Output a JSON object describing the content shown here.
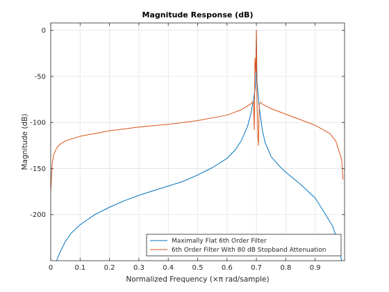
{
  "chart_data": {
    "type": "line",
    "title": "Magnitude Response (dB)",
    "xlabel": "Normalized Frequency (×π rad/sample)",
    "ylabel": "Magnitude (dB)",
    "xlim": [
      0,
      1
    ],
    "ylim": [
      -250,
      8
    ],
    "xticks": [
      0,
      0.1,
      0.2,
      0.3,
      0.4,
      0.5,
      0.6,
      0.7,
      0.8,
      0.9
    ],
    "xticklabels": [
      "0",
      "0.1",
      "0.2",
      "0.3",
      "0.4",
      "0.5",
      "0.6",
      "0.7",
      "0.8",
      "0.9"
    ],
    "yticks": [
      0,
      -50,
      -100,
      -150,
      -200
    ],
    "yticklabels": [
      "0",
      "-50",
      "-100",
      "-150",
      "-200"
    ],
    "grid": true,
    "legend_position": "bottom-right",
    "series": [
      {
        "name": "Maximally Flat 6th Order Filter",
        "color": "#0072BD",
        "x": [
          0.02,
          0.03,
          0.05,
          0.07,
          0.1,
          0.15,
          0.2,
          0.25,
          0.3,
          0.35,
          0.4,
          0.45,
          0.5,
          0.55,
          0.6,
          0.63,
          0.65,
          0.67,
          0.68,
          0.69,
          0.695,
          0.698,
          0.7,
          0.702,
          0.705,
          0.71,
          0.72,
          0.73,
          0.75,
          0.78,
          0.8,
          0.85,
          0.9,
          0.93,
          0.96,
          0.98,
          0.99
        ],
        "y": [
          -250,
          -242,
          -229,
          -220,
          -211,
          -200,
          -192,
          -185,
          -179,
          -174,
          -169,
          -164,
          -157,
          -149,
          -139,
          -129,
          -119,
          -104,
          -92,
          -76,
          -65,
          -55,
          0,
          -55,
          -66,
          -84,
          -108,
          -122,
          -137,
          -148,
          -154,
          -167,
          -182,
          -197,
          -213,
          -232,
          -250
        ]
      },
      {
        "name": "6th Order Filter With 80 dB Stopband Attenuation",
        "color": "#D95319",
        "x": [
          0,
          0.005,
          0.01,
          0.02,
          0.03,
          0.05,
          0.1,
          0.2,
          0.3,
          0.4,
          0.5,
          0.6,
          0.65,
          0.68,
          0.69,
          0.693,
          0.695,
          0.698,
          0.7,
          0.702,
          0.705,
          0.707,
          0.71,
          0.715,
          0.72,
          0.75,
          0.8,
          0.9,
          0.95,
          0.97,
          0.98,
          0.99,
          0.995
        ],
        "y": [
          -175,
          -145,
          -135,
          -128,
          -124,
          -120,
          -115,
          -109,
          -105,
          -102,
          -98,
          -92,
          -86,
          -80,
          -77,
          -108,
          -30,
          -46,
          0,
          -75,
          -116,
          -125,
          -80,
          -78,
          -80,
          -85,
          -91,
          -103,
          -112,
          -120,
          -130,
          -140,
          -162
        ]
      }
    ]
  }
}
